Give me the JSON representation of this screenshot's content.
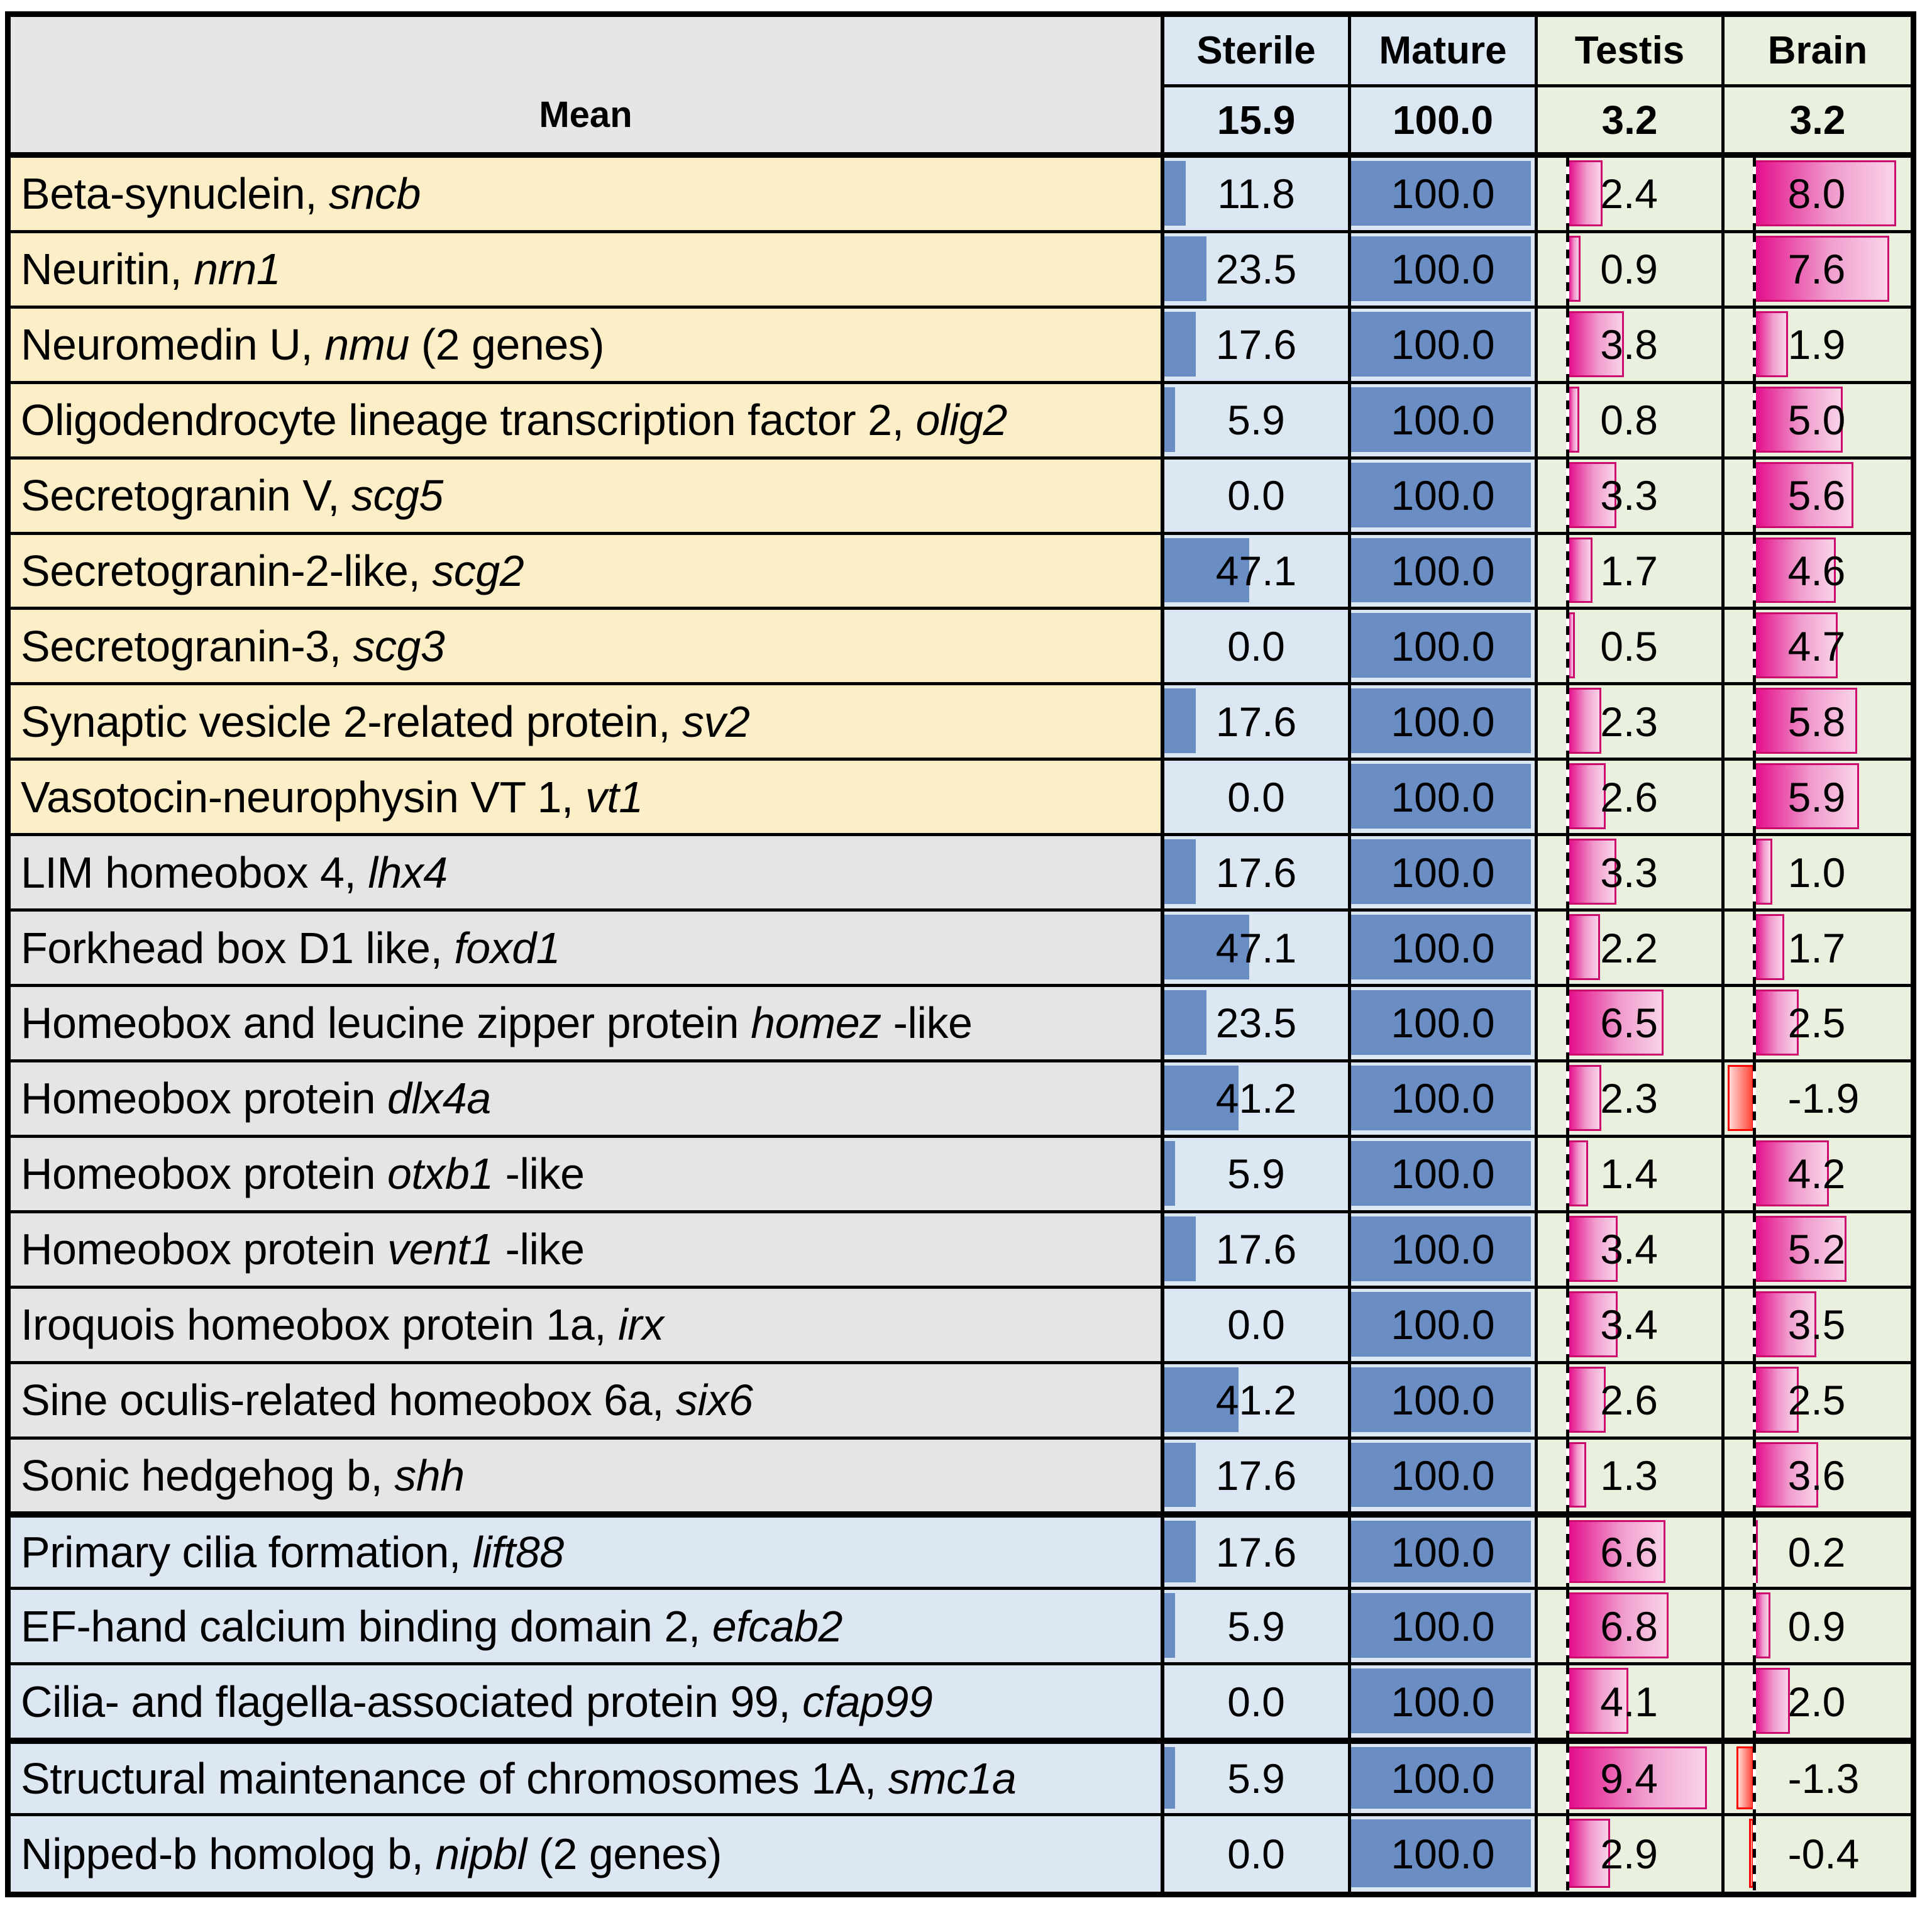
{
  "colors": {
    "border": "#000000",
    "head-gray": "#e6e6e6",
    "yellow": "#fceec6",
    "gray": "#e5e5e5",
    "lblue": "#dce7f3",
    "blue-bg": "#dce7f4",
    "blue-bar": "#6a8dc4",
    "green-bg": "#e9f0dd",
    "pink-dark": "#e40e8c",
    "pink-light": "#f9d3e8",
    "pink-border": "#cc0a6e",
    "red-border": "#ff0000",
    "red-dark": "#ff4438",
    "red-light": "#ffd9d4"
  },
  "chart_data": {
    "type": "table",
    "title": "Gene expression relative to mature testis (data-bar table)",
    "mean_label": "Mean",
    "columns": [
      "Sterile",
      "Mature",
      "Testis",
      "Brain"
    ],
    "column_means": [
      15.9,
      100.0,
      3.2,
      3.2
    ],
    "column_means_display": [
      "15.9",
      "100.0",
      "3.2",
      "3.2"
    ],
    "column_themes": [
      "blue",
      "blue",
      "green",
      "green"
    ],
    "layout_hints": {
      "bar_style_blue": "solid left-anchored bar, axis 0-100",
      "bar_style_pink": "gradient bar from dashed zero axis at 16% of cell, negatives red to the left",
      "sterile_axis_max": 100,
      "mature_axis_max": 100,
      "testis_axis_max": 10,
      "brain_pos_axis_max": 8.5,
      "brain_neg_axis_max": 2.0,
      "baseline_fraction": 0.16,
      "grid": "black cell borders, thick separators before cilia and chromosome groups"
    },
    "rows": [
      {
        "pre": "Beta-synuclein, ",
        "gene": "sncb",
        "post": "",
        "bg": "yellow",
        "sep": false,
        "values": [
          11.8,
          100.0,
          2.4,
          8.0
        ]
      },
      {
        "pre": "Neuritin, ",
        "gene": "nrn1",
        "post": "",
        "bg": "yellow",
        "sep": false,
        "values": [
          23.5,
          100.0,
          0.9,
          7.6
        ]
      },
      {
        "pre": "Neuromedin U, ",
        "gene": "nmu",
        "post": "  (2 genes)",
        "bg": "yellow",
        "sep": false,
        "values": [
          17.6,
          100.0,
          3.8,
          1.9
        ]
      },
      {
        "pre": "Oligodendrocyte lineage transcription factor 2, ",
        "gene": "olig2",
        "post": "",
        "bg": "yellow",
        "sep": false,
        "values": [
          5.9,
          100.0,
          0.8,
          5.0
        ]
      },
      {
        "pre": "Secretogranin V, ",
        "gene": "scg5",
        "post": "",
        "bg": "yellow",
        "sep": false,
        "values": [
          0.0,
          100.0,
          3.3,
          5.6
        ]
      },
      {
        "pre": "Secretogranin-2-like, ",
        "gene": "scg2",
        "post": "",
        "bg": "yellow",
        "sep": false,
        "values": [
          47.1,
          100.0,
          1.7,
          4.6
        ]
      },
      {
        "pre": "Secretogranin-3, ",
        "gene": "scg3",
        "post": "",
        "bg": "yellow",
        "sep": false,
        "values": [
          0.0,
          100.0,
          0.5,
          4.7
        ]
      },
      {
        "pre": "Synaptic vesicle 2-related protein, ",
        "gene": "sv2",
        "post": "",
        "bg": "yellow",
        "sep": false,
        "values": [
          17.6,
          100.0,
          2.3,
          5.8
        ]
      },
      {
        "pre": "Vasotocin-neurophysin VT 1, ",
        "gene": "vt1",
        "post": "",
        "bg": "yellow",
        "sep": false,
        "values": [
          0.0,
          100.0,
          2.6,
          5.9
        ]
      },
      {
        "pre": "LIM homeobox 4, ",
        "gene": "lhx4",
        "post": "",
        "bg": "gray",
        "sep": false,
        "values": [
          17.6,
          100.0,
          3.3,
          1.0
        ]
      },
      {
        "pre": "Forkhead box D1 like, ",
        "gene": "foxd1",
        "post": "",
        "bg": "gray",
        "sep": false,
        "values": [
          47.1,
          100.0,
          2.2,
          1.7
        ]
      },
      {
        "pre": "Homeobox and leucine zipper protein ",
        "gene": "homez",
        "post": " -like",
        "bg": "gray",
        "sep": false,
        "values": [
          23.5,
          100.0,
          6.5,
          2.5
        ]
      },
      {
        "pre": "Homeobox protein ",
        "gene": "dlx4a",
        "post": "",
        "bg": "gray",
        "sep": false,
        "values": [
          41.2,
          100.0,
          2.3,
          -1.9
        ]
      },
      {
        "pre": "Homeobox protein ",
        "gene": "otxb1",
        "post": " -like",
        "bg": "gray",
        "sep": false,
        "values": [
          5.9,
          100.0,
          1.4,
          4.2
        ]
      },
      {
        "pre": "Homeobox protein ",
        "gene": "vent1",
        "post": " -like",
        "bg": "gray",
        "sep": false,
        "values": [
          17.6,
          100.0,
          3.4,
          5.2
        ]
      },
      {
        "pre": "Iroquois homeobox protein 1a, ",
        "gene": "irx",
        "post": "",
        "bg": "gray",
        "sep": false,
        "values": [
          0.0,
          100.0,
          3.4,
          3.5
        ]
      },
      {
        "pre": "Sine oculis-related homeobox 6a, ",
        "gene": "six6",
        "post": "",
        "bg": "gray",
        "sep": false,
        "values": [
          41.2,
          100.0,
          2.6,
          2.5
        ]
      },
      {
        "pre": "Sonic hedgehog b, ",
        "gene": "shh",
        "post": "",
        "bg": "gray",
        "sep": false,
        "values": [
          17.6,
          100.0,
          1.3,
          3.6
        ]
      },
      {
        "pre": "Primary cilia formation, ",
        "gene": "lift88",
        "post": "",
        "bg": "blue",
        "sep": true,
        "values": [
          17.6,
          100.0,
          6.6,
          0.2
        ]
      },
      {
        "pre": "EF-hand calcium binding domain 2, ",
        "gene": "efcab2",
        "post": "",
        "bg": "blue",
        "sep": false,
        "values": [
          5.9,
          100.0,
          6.8,
          0.9
        ]
      },
      {
        "pre": "Cilia- and flagella-associated protein 99, ",
        "gene": "cfap99",
        "post": "",
        "bg": "blue",
        "sep": false,
        "values": [
          0.0,
          100.0,
          4.1,
          2.0
        ]
      },
      {
        "pre": "Structural maintenance of chromosomes 1A, ",
        "gene": "smc1a",
        "post": "",
        "bg": "blue",
        "sep": true,
        "values": [
          5.9,
          100.0,
          9.4,
          -1.3
        ]
      },
      {
        "pre": "Nipped-b homolog b, ",
        "gene": "nipbl",
        "post": "  (2 genes)",
        "bg": "blue",
        "sep": false,
        "values": [
          0.0,
          100.0,
          2.9,
          -0.4
        ]
      }
    ]
  }
}
